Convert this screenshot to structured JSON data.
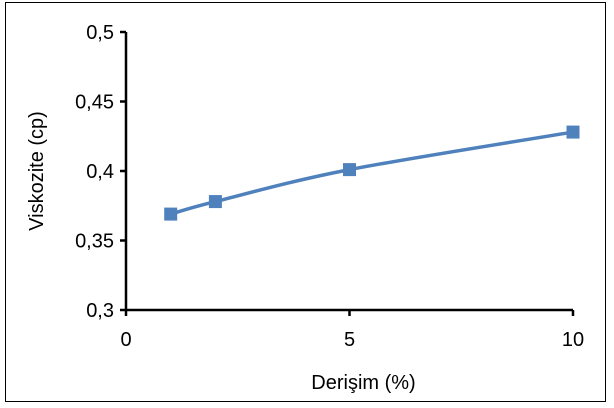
{
  "chart_data": {
    "type": "line",
    "title": "",
    "xlabel": "Derişim (%)",
    "ylabel": "Viskozite (cp)",
    "x": [
      1,
      2,
      5,
      10
    ],
    "series": [
      {
        "values": [
          0.369,
          0.378,
          0.401,
          0.428
        ],
        "color": "#4F81BD",
        "marker": "square",
        "smooth": true
      }
    ],
    "xlim": [
      0,
      10
    ],
    "ylim": [
      0.3,
      0.5
    ],
    "x_ticks": [
      0,
      5,
      10
    ],
    "x_tick_labels": [
      "0",
      "5",
      "10"
    ],
    "y_ticks": [
      0.3,
      0.35,
      0.4,
      0.45,
      0.5
    ],
    "y_tick_labels": [
      "0,3",
      "0,35",
      "0,4",
      "0,45",
      "0,5"
    ],
    "grid": false,
    "legend": "none"
  }
}
